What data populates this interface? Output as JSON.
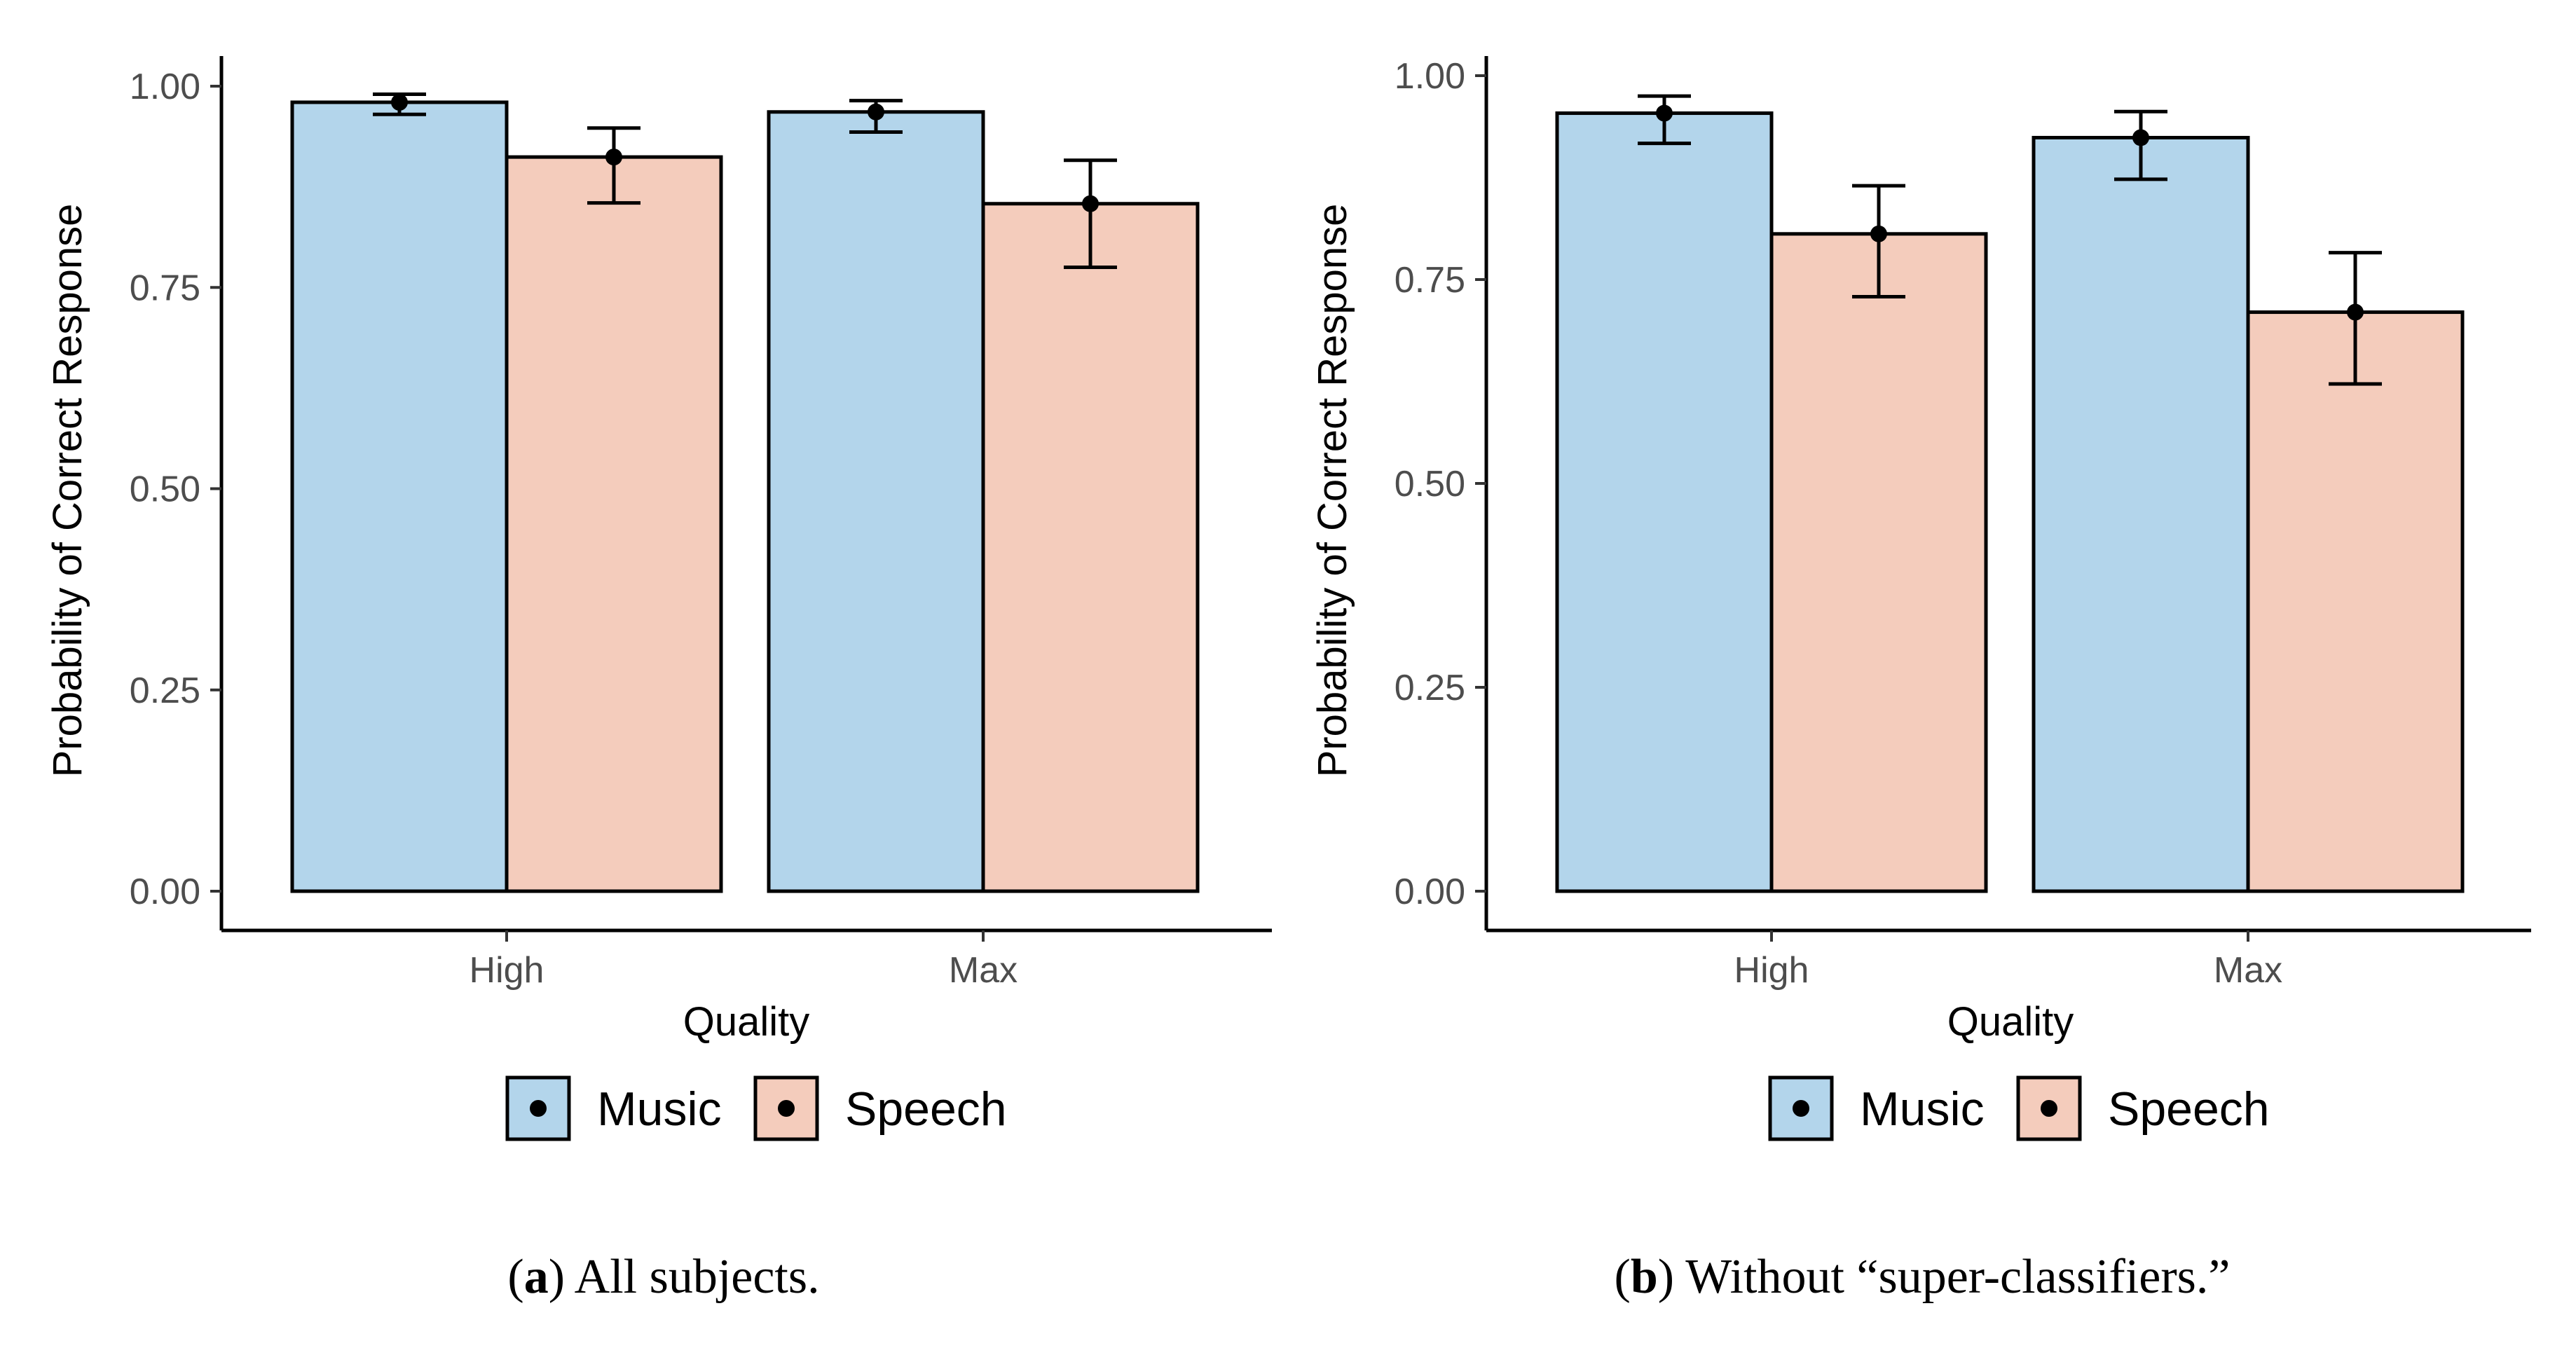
{
  "figure": {
    "captions": [
      {
        "label": "a",
        "open": "(",
        "close": ")",
        "text": " All subjects."
      },
      {
        "label": "b",
        "open": "(",
        "close": ")",
        "text": " Without “super-classifiers.”"
      }
    ]
  },
  "chart_data": [
    {
      "type": "bar",
      "panel": "a",
      "xlabel": "Quality",
      "ylabel": "Probability of Correct Response",
      "ylim": [
        0,
        1
      ],
      "yticks": [
        0,
        0.25,
        0.5,
        0.75,
        1
      ],
      "ytick_labels": [
        "0.00",
        "0.25",
        "0.50",
        "0.75",
        "1.00"
      ],
      "categories": [
        "High",
        "Max"
      ],
      "series": [
        {
          "name": "Music",
          "color": "#b3d5eb",
          "values": [
            0.98,
            0.968
          ],
          "ci_low": [
            0.965,
            0.943
          ],
          "ci_high": [
            0.99,
            0.982
          ]
        },
        {
          "name": "Speech",
          "color": "#f4ccbc",
          "values": [
            0.912,
            0.854
          ],
          "ci_low": [
            0.855,
            0.775
          ],
          "ci_high": [
            0.948,
            0.908
          ]
        }
      ],
      "legend": [
        "Music",
        "Speech"
      ],
      "legend_position": "bottom"
    },
    {
      "type": "bar",
      "panel": "b",
      "xlabel": "Quality",
      "ylabel": "Probability of Correct Response",
      "ylim": [
        0,
        1
      ],
      "yticks": [
        0,
        0.25,
        0.5,
        0.75,
        1
      ],
      "ytick_labels": [
        "0.00",
        "0.25",
        "0.50",
        "0.75",
        "1.00"
      ],
      "categories": [
        "High",
        "Max"
      ],
      "series": [
        {
          "name": "Music",
          "color": "#b3d5eb",
          "values": [
            0.954,
            0.924
          ],
          "ci_low": [
            0.917,
            0.873
          ],
          "ci_high": [
            0.975,
            0.956
          ]
        },
        {
          "name": "Speech",
          "color": "#f4ccbc",
          "values": [
            0.806,
            0.71
          ],
          "ci_low": [
            0.729,
            0.622
          ],
          "ci_high": [
            0.865,
            0.783
          ]
        }
      ],
      "legend": [
        "Music",
        "Speech"
      ],
      "legend_position": "bottom"
    }
  ]
}
